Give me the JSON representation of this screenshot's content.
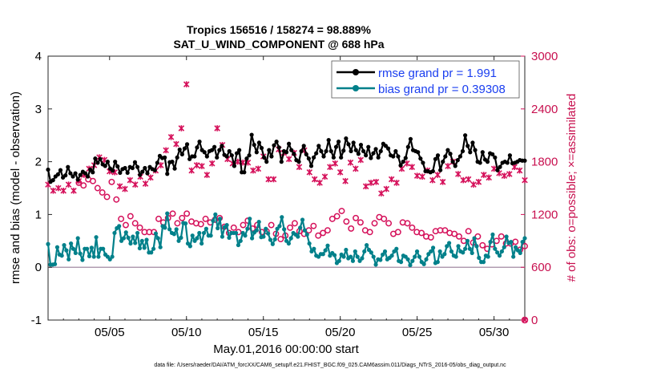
{
  "chart_data": {
    "type": "line",
    "title_line1": "Tropics 156516 / 158274 = 98.889%",
    "title_line2": "SAT_U_WIND_COMPONENT @ 688 hPa",
    "xlabel": "May.01,2016 00:00:00 start",
    "ylabel": "rmse and bias (model - observation)",
    "ylabel_right": "# of obs: o=possible; ×=assimilated",
    "xlim": [
      1,
      32
    ],
    "ylim": [
      -1,
      4
    ],
    "ylim_right": [
      0,
      3000
    ],
    "x_tick_values": [
      5,
      10,
      15,
      20,
      25,
      30
    ],
    "x_tick_labels": [
      "05/05",
      "05/10",
      "05/15",
      "05/20",
      "05/25",
      "05/30"
    ],
    "y_ticks": [
      "-1",
      "0",
      "1",
      "2",
      "3",
      "4"
    ],
    "y_right_ticks": [
      "0",
      "600",
      "1200",
      "1800",
      "2400",
      "3000"
    ],
    "footnote": "data file: /Users/raeder/DAI/ATM_forcXX/CAM6_setup/f.e21.FHIST_BGC.f09_025.CAM6assim.011/Diags_NTrS_2016-05/obs_diag_output.nc",
    "colors": {
      "rmse": "#000000",
      "bias": "#00808a",
      "obs": "#d5105a",
      "zero_line": "#b09cb0"
    },
    "series": [
      {
        "name": "rmse grand pr = 1.991",
        "values": [
          1.85,
          1.62,
          1.65,
          1.72,
          1.76,
          1.84,
          1.7,
          1.74,
          1.9,
          1.78,
          1.72,
          1.78,
          1.66,
          1.75,
          1.81,
          1.78,
          1.72,
          1.85,
          1.8,
          2.06,
          1.98,
          2.05,
          1.95,
          1.92,
          2.0,
          1.87,
          1.83,
          2.0,
          1.91,
          1.79,
          1.86,
          1.88,
          1.79,
          1.9,
          1.88,
          1.99,
          1.9,
          1.75,
          1.81,
          1.88,
          1.78,
          1.9,
          1.86,
          1.84,
          1.98,
          2.11,
          2.07,
          2.08,
          1.77,
          1.99,
          2.0,
          1.87,
          2.08,
          2.23,
          2.14,
          2.25,
          2.33,
          2.05,
          2.1,
          2.1,
          2.27,
          2.38,
          2.22,
          2.18,
          2.1,
          2.2,
          2.22,
          2.28,
          2.08,
          2.22,
          2.3,
          2.13,
          2.1,
          2.2,
          2.12,
          1.92,
          2.16,
          2.22,
          1.8,
          1.8,
          2.06,
          2.12,
          2.51,
          2.32,
          2.18,
          2.36,
          2.26,
          2.08,
          2.0,
          2.22,
          2.1,
          2.31,
          2.38,
          2.27,
          2.0,
          2.2,
          2.18,
          2.34,
          2.22,
          2.15,
          2.03,
          2.0,
          2.2,
          2.3,
          2.14,
          2.06,
          1.92,
          2.08,
          2.16,
          2.3,
          2.2,
          2.1,
          2.2,
          2.41,
          2.2,
          2.08,
          2.28,
          2.38,
          2.08,
          2.21,
          2.44,
          2.33,
          2.2,
          2.36,
          2.22,
          2.15,
          2.32,
          2.2,
          2.12,
          2.28,
          2.07,
          2.16,
          2.24,
          2.08,
          2.2,
          2.34,
          2.3,
          2.25,
          2.12,
          2.1,
          2.2,
          2.1,
          1.93,
          2.0,
          2.07,
          2.28,
          2.43,
          2.22,
          2.2,
          2.18,
          2.06,
          1.98,
          1.82,
          1.82,
          1.8,
          1.82,
          2.05,
          2.12,
          1.84,
          2.0,
          2.1,
          2.22,
          2.15,
          2.0,
          1.92,
          2.03,
          2.1,
          2.2,
          2.5,
          2.3,
          2.18,
          2.36,
          2.22,
          2.0,
          1.98,
          2.18,
          2.04,
          2.0,
          2.16,
          2.14,
          2.08,
          1.84,
          1.9,
          1.98,
          2.0,
          1.98,
          2.12,
          1.97,
          1.98,
          2.0,
          2.03,
          2.02,
          2.02
        ]
      },
      {
        "name": "bias grand pr = 0.39308",
        "values": [
          0.44,
          0.05,
          0.05,
          0.06,
          0.38,
          0.24,
          0.22,
          0.42,
          0.32,
          0.15,
          0.45,
          0.35,
          0.27,
          0.55,
          0.26,
          0.14,
          0.35,
          0.35,
          0.21,
          0.37,
          0.2,
          0.57,
          0.2,
          0.35,
          0.35,
          0.24,
          0.2,
          0.15,
          0.2,
          0.65,
          0.74,
          0.78,
          0.5,
          0.55,
          0.66,
          0.56,
          0.45,
          0.58,
          0.46,
          0.65,
          0.36,
          0.5,
          0.37,
          0.52,
          0.28,
          0.28,
          0.35,
          0.64,
          0.55,
          0.38,
          0.78,
          0.75,
          1.02,
          0.72,
          0.65,
          0.63,
          0.72,
          0.5,
          0.56,
          0.84,
          0.83,
          0.45,
          0.4,
          0.6,
          0.5,
          0.55,
          0.65,
          0.45,
          0.65,
          0.73,
          0.6,
          0.6,
          0.88,
          1.0,
          0.74,
          0.92,
          0.58,
          0.76,
          0.8,
          0.56,
          0.65,
          0.65,
          0.65,
          0.42,
          0.5,
          0.65,
          0.6,
          0.73,
          0.92,
          0.55,
          0.66,
          0.7,
          0.86,
          0.57,
          0.58,
          0.73,
          0.64,
          0.52,
          0.44,
          0.53,
          0.73,
          0.78,
          0.95,
          0.72,
          0.5,
          0.45,
          0.55,
          0.65,
          0.62,
          0.58,
          0.75,
          0.9,
          0.7,
          0.62,
          0.45,
          0.3,
          0.35,
          0.22,
          0.2,
          0.25,
          0.25,
          0.32,
          0.41,
          0.22,
          0.27,
          0.23,
          0.08,
          0.12,
          0.24,
          0.2,
          0.33,
          0.17,
          0.2,
          0.12,
          0.3,
          0.2,
          0.12,
          0.17,
          0.3,
          0.42,
          0.33,
          0.28,
          0.2,
          0.05,
          0.15,
          0.14,
          0.24,
          0.3,
          0.15,
          0.18,
          0.22,
          0.3,
          0.35,
          0.12,
          0.1,
          0.22,
          0.2,
          0.15,
          0.04,
          0.12,
          0.2,
          0.3,
          0.2,
          0.1,
          0.06,
          0.15,
          0.25,
          0.3,
          0.37,
          0.08,
          0.1,
          0.3,
          0.2,
          0.25,
          0.4,
          0.46,
          0.3,
          0.22,
          0.2,
          0.4,
          0.3,
          0.28,
          0.35,
          0.5,
          0.35,
          0.27,
          0.55,
          0.4,
          0.18,
          0.1,
          0.1,
          0.22,
          0.2,
          0.48,
          0.62,
          0.35,
          0.28,
          0.22,
          0.3,
          0.38,
          0.58,
          0.46,
          0.48,
          0.2,
          0.38,
          0.32,
          0.27,
          0.48,
          0.55
        ]
      }
    ],
    "obs_possible": [
      1560,
      1530,
      1600,
      1580,
      1500,
      1450,
      1400,
      1570,
      1370,
      1150,
      1080,
      1180,
      1100,
      1050,
      1000,
      1000,
      1000,
      1150,
      1110,
      1160,
      1210,
      1100,
      1160,
      1210,
      1120,
      1100,
      1090,
      1150,
      1110,
      1140,
      1160,
      1060,
      990,
      1050,
      1000,
      1080,
      1130,
      1040,
      1080,
      1000,
      1010,
      1080,
      980,
      920,
      960,
      1050,
      1100,
      1010,
      980,
      1020,
      1070,
      960,
      990,
      1020,
      1150,
      1180,
      1240,
      1120,
      1040,
      1160,
      1110,
      1020,
      1000,
      1100,
      1170,
      1150,
      1100,
      980,
      1000,
      1110,
      1100,
      1050,
      1000,
      990,
      950,
      940,
      1010,
      1020,
      1020,
      990,
      980,
      950,
      900,
      1010,
      880,
      950,
      850,
      810,
      860,
      900,
      950,
      870,
      870,
      890,
      800,
      840
    ],
    "obs_assimilated": [
      1540,
      1470,
      1500,
      1470,
      1540,
      1470,
      1580,
      1650,
      1720,
      1760,
      1850,
      1820,
      1690,
      1680,
      1520,
      1490,
      1590,
      1540,
      1630,
      1550,
      1620,
      1700,
      1760,
      1930,
      2080,
      2000,
      2180,
      2680,
      1700,
      1760,
      1750,
      1650,
      1780,
      2180,
      1990,
      1830,
      1780,
      1800,
      1790,
      1790,
      1700,
      1720,
      1860,
      1600,
      1600,
      1940,
      1900,
      1830,
      1900,
      1740,
      1930,
      1680,
      1600,
      1560,
      1630,
      1740,
      1780,
      1680,
      1580,
      1790,
      1720,
      1820,
      1520,
      1560,
      1570,
      1440,
      1490,
      1600,
      1560,
      1720,
      1780,
      1740,
      1640,
      1630,
      1700,
      1590,
      1650,
      1570,
      1750,
      1800,
      1660,
      1590,
      1600,
      1540,
      1570,
      1650,
      1620,
      1720,
      1670,
      1640,
      1660,
      1740,
      1700,
      1590
    ]
  },
  "legend": {
    "rmse_label": "rmse grand pr = 1.991",
    "bias_label": "bias grand pr = 0.39308"
  }
}
